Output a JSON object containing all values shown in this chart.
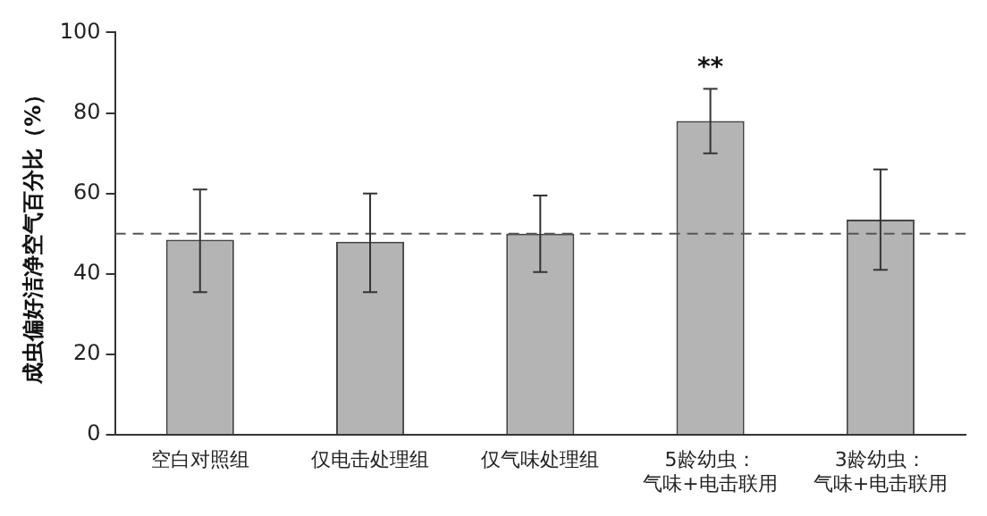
{
  "chart_data": {
    "type": "bar",
    "ylabel": "成虫偏好洁净空气百分比（%）",
    "categories": [
      "空白对照组",
      "仅电击处理组",
      "仅气味处理组",
      "5龄幼虫：气味+电击联用",
      "3龄幼虫：气味+电击联用"
    ],
    "values": [
      48.5,
      48,
      50,
      78,
      53.5
    ],
    "color": "#b4b4b4",
    "errors": [
      [
        35.5,
        61
      ],
      [
        35.5,
        60
      ],
      [
        40.5,
        59.5
      ],
      [
        70,
        86
      ],
      [
        41,
        66
      ]
    ],
    "ylim": [
      0,
      100
    ],
    "yticks": [
      0,
      20,
      40,
      60,
      80,
      100
    ],
    "grid": false,
    "ref_lines": [
      {
        "axis": "y",
        "value": 50,
        "line_style": "dashed",
        "color": "#555555"
      }
    ],
    "annotations": [
      {
        "text": "**",
        "x": "5龄幼虫：气味+电击联用",
        "y": 88
      }
    ]
  }
}
